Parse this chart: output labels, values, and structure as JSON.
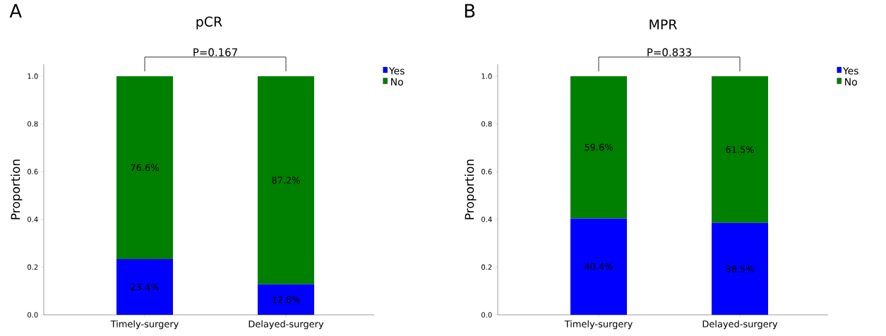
{
  "chart_data": [
    {
      "type": "bar",
      "title": "pCR",
      "ylabel": "Proportion",
      "stacked": true,
      "categories": [
        "Timely-surgery",
        "Delayed-surgery"
      ],
      "series": [
        {
          "name": "Yes",
          "color": "#0000ff",
          "values": [
            0.234,
            0.128
          ],
          "value_labels": [
            "23.4%",
            "12.8%"
          ]
        },
        {
          "name": "No",
          "color": "#008000",
          "values": [
            0.766,
            0.872
          ],
          "value_labels": [
            "76.6%",
            "87.2%"
          ]
        }
      ],
      "ylim": [
        0,
        1.05
      ],
      "yticks": [
        {
          "value": 0,
          "label": "0.0"
        },
        {
          "value": 0.2,
          "label": "0.2"
        },
        {
          "value": 0.4,
          "label": "0.4"
        },
        {
          "value": 0.6,
          "label": "0.6"
        },
        {
          "value": 0.8,
          "label": "0.8"
        },
        {
          "value": 1,
          "label": "1.0"
        }
      ],
      "legend": "top right",
      "annotations": [
        "A",
        "P=0.167"
      ]
    },
    {
      "type": "bar",
      "title": "MPR",
      "ylabel": "Proportion",
      "stacked": true,
      "categories": [
        "Timely-surgery",
        "Delayed-surgery"
      ],
      "series": [
        {
          "name": "Yes",
          "color": "#0000ff",
          "values": [
            0.404,
            0.385
          ],
          "value_labels": [
            "40.4%",
            "38.5%"
          ]
        },
        {
          "name": "No",
          "color": "#008000",
          "values": [
            0.596,
            0.615
          ],
          "value_labels": [
            "59.6%",
            "61.5%"
          ]
        }
      ],
      "ylim": [
        0,
        1.05
      ],
      "yticks": [
        {
          "value": 0,
          "label": "0.0"
        },
        {
          "value": 0.2,
          "label": "0.2"
        },
        {
          "value": 0.4,
          "label": "0.4"
        },
        {
          "value": 0.6,
          "label": "0.6"
        },
        {
          "value": 0.8,
          "label": "0.8"
        },
        {
          "value": 1,
          "label": "1.0"
        }
      ],
      "legend": "top right",
      "annotations": [
        "B",
        "P=0.833"
      ]
    }
  ]
}
